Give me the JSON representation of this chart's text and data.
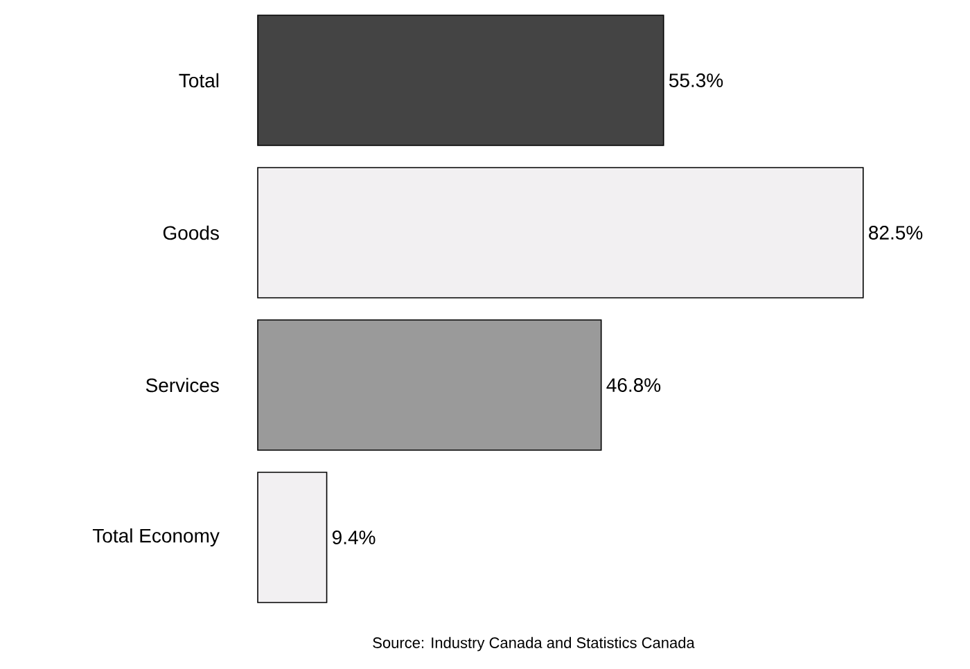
{
  "chart_data": {
    "type": "bar",
    "orientation": "horizontal",
    "categories": [
      "Total",
      "Goods",
      "Services",
      "Total Economy"
    ],
    "values": [
      55.3,
      82.5,
      46.8,
      9.4
    ],
    "colors": [
      "#444444",
      "#f2f0f2",
      "#9a9a9a",
      "#f2f0f2"
    ],
    "data_labels": true,
    "value_labels": [
      "55.3%",
      "82.5%",
      "46.8%",
      "9.4%"
    ],
    "annotations": [
      "Source: Industry Canada and Statistics Canada"
    ]
  }
}
